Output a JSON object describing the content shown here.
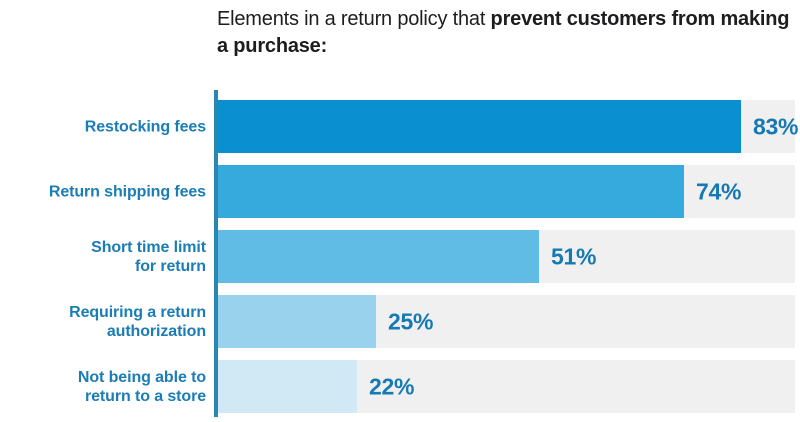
{
  "title": {
    "regular": "Elements in a return policy that ",
    "bold": "prevent customers from making a purchase:"
  },
  "colors": {
    "title_text": "#1d1d1f",
    "category_label": "#1b7db6",
    "value_label": "#1779b3",
    "axis_line": "#2a87b2",
    "bar_track": "#f0f0f1",
    "bars": [
      "#0a90d0",
      "#36a9dd",
      "#60bbe5",
      "#99d2ed",
      "#d0e9f5"
    ]
  },
  "chart_data": {
    "type": "bar",
    "orientation": "horizontal",
    "title": "Elements in a return policy that prevent customers from making a purchase:",
    "categories": [
      "Restocking fees",
      "Return shipping fees",
      "Short time limit for return",
      "Requiring a return authorization",
      "Not being able to return to a store"
    ],
    "categories_display": [
      "Restocking fees",
      "Return shipping fees",
      "Short time limit\nfor return",
      "Requiring a return\nauthorization",
      "Not being able to\nreturn to a store"
    ],
    "values": [
      83,
      74,
      51,
      25,
      22
    ],
    "value_labels": [
      "83%",
      "74%",
      "51%",
      "25%",
      "22%"
    ],
    "xlim": [
      0,
      100
    ],
    "xlabel": "",
    "ylabel": "",
    "legend": false,
    "gridlines": false,
    "bar_colors": [
      "#0a90d0",
      "#36a9dd",
      "#60bbe5",
      "#99d2ed",
      "#d0e9f5"
    ]
  }
}
